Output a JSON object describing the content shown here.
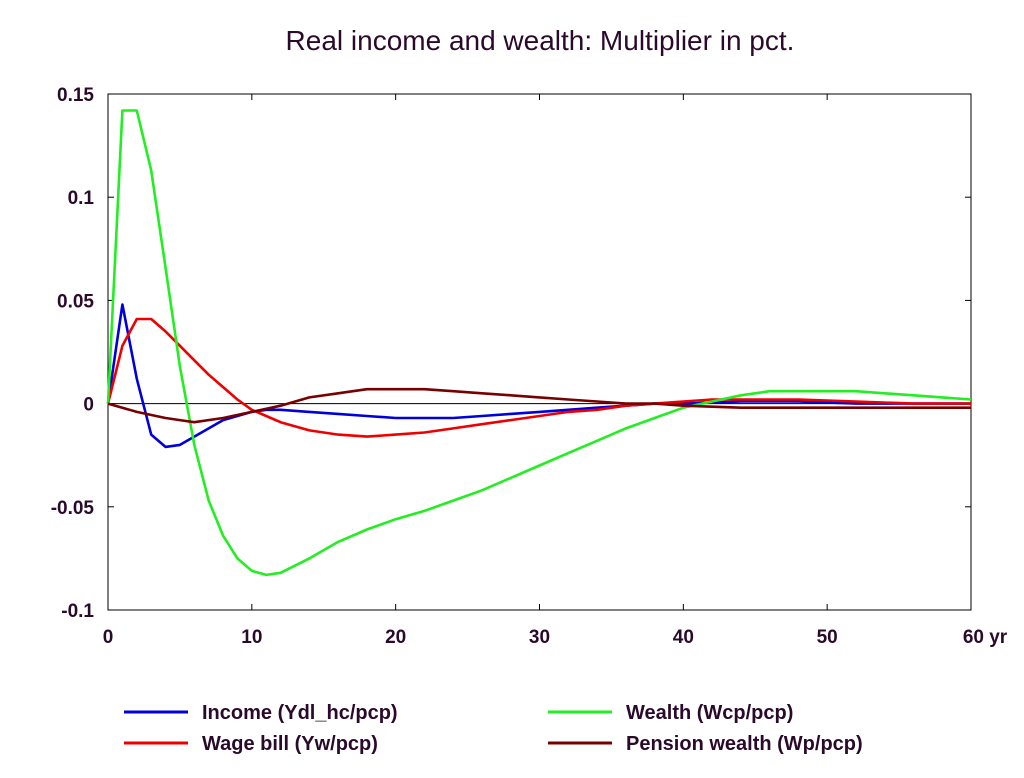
{
  "chart_data": {
    "type": "line",
    "title": "Real income and wealth: Multiplier in pct.",
    "xlabel": "",
    "ylabel": "",
    "x_unit_label": "yr",
    "xlim": [
      0,
      60
    ],
    "ylim": [
      -0.1,
      0.15
    ],
    "x_ticks": [
      "0",
      "10",
      "20",
      "30",
      "40",
      "50",
      "60"
    ],
    "y_ticks": [
      "0.15",
      "0.1",
      "0.05",
      "0",
      "-0.05",
      "-0.1"
    ],
    "grid": false,
    "zero_line": true,
    "legend_position": "bottom",
    "series": [
      {
        "name": "Income (Ydl_hc/pcp)",
        "color": "#0000dd",
        "points": [
          [
            0,
            0
          ],
          [
            1,
            0.048
          ],
          [
            2,
            0.012
          ],
          [
            3,
            -0.015
          ],
          [
            4,
            -0.021
          ],
          [
            5,
            -0.02
          ],
          [
            6,
            -0.016
          ],
          [
            7,
            -0.012
          ],
          [
            8,
            -0.008
          ],
          [
            9,
            -0.006
          ],
          [
            10,
            -0.004
          ],
          [
            11,
            -0.003
          ],
          [
            12,
            -0.003
          ],
          [
            14,
            -0.004
          ],
          [
            16,
            -0.005
          ],
          [
            18,
            -0.006
          ],
          [
            20,
            -0.007
          ],
          [
            22,
            -0.007
          ],
          [
            24,
            -0.007
          ],
          [
            26,
            -0.006
          ],
          [
            28,
            -0.005
          ],
          [
            30,
            -0.004
          ],
          [
            32,
            -0.003
          ],
          [
            34,
            -0.002
          ],
          [
            36,
            -0.001
          ],
          [
            38,
            0
          ],
          [
            40,
            0
          ],
          [
            44,
            0.001
          ],
          [
            48,
            0.001
          ],
          [
            52,
            0
          ],
          [
            56,
            0
          ],
          [
            60,
            0
          ]
        ]
      },
      {
        "name": "Wage bill (Yw/pcp)",
        "color": "#ee0000",
        "points": [
          [
            0,
            0
          ],
          [
            1,
            0.028
          ],
          [
            2,
            0.041
          ],
          [
            3,
            0.041
          ],
          [
            4,
            0.035
          ],
          [
            5,
            0.028
          ],
          [
            6,
            0.021
          ],
          [
            7,
            0.014
          ],
          [
            8,
            0.008
          ],
          [
            9,
            0.002
          ],
          [
            10,
            -0.003
          ],
          [
            11,
            -0.006
          ],
          [
            12,
            -0.009
          ],
          [
            14,
            -0.013
          ],
          [
            16,
            -0.015
          ],
          [
            18,
            -0.016
          ],
          [
            20,
            -0.015
          ],
          [
            22,
            -0.014
          ],
          [
            24,
            -0.012
          ],
          [
            26,
            -0.01
          ],
          [
            28,
            -0.008
          ],
          [
            30,
            -0.006
          ],
          [
            32,
            -0.004
          ],
          [
            34,
            -0.003
          ],
          [
            36,
            -0.001
          ],
          [
            38,
            0
          ],
          [
            40,
            0.001
          ],
          [
            42,
            0.002
          ],
          [
            44,
            0.002
          ],
          [
            46,
            0.002
          ],
          [
            48,
            0.002
          ],
          [
            52,
            0.001
          ],
          [
            56,
            0
          ],
          [
            60,
            0
          ]
        ]
      },
      {
        "name": "Wealth (Wcp/pcp)",
        "color": "#22ee22",
        "points": [
          [
            0,
            0
          ],
          [
            1,
            0.142
          ],
          [
            2,
            0.142
          ],
          [
            3,
            0.113
          ],
          [
            4,
            0.066
          ],
          [
            5,
            0.018
          ],
          [
            6,
            -0.02
          ],
          [
            7,
            -0.047
          ],
          [
            8,
            -0.064
          ],
          [
            9,
            -0.075
          ],
          [
            10,
            -0.081
          ],
          [
            11,
            -0.083
          ],
          [
            12,
            -0.082
          ],
          [
            14,
            -0.075
          ],
          [
            16,
            -0.067
          ],
          [
            18,
            -0.061
          ],
          [
            20,
            -0.056
          ],
          [
            22,
            -0.052
          ],
          [
            24,
            -0.047
          ],
          [
            26,
            -0.042
          ],
          [
            28,
            -0.036
          ],
          [
            30,
            -0.03
          ],
          [
            32,
            -0.024
          ],
          [
            34,
            -0.018
          ],
          [
            36,
            -0.012
          ],
          [
            38,
            -0.007
          ],
          [
            40,
            -0.002
          ],
          [
            42,
            0.001
          ],
          [
            44,
            0.004
          ],
          [
            46,
            0.006
          ],
          [
            48,
            0.006
          ],
          [
            50,
            0.006
          ],
          [
            52,
            0.006
          ],
          [
            54,
            0.005
          ],
          [
            56,
            0.004
          ],
          [
            58,
            0.003
          ],
          [
            60,
            0.002
          ]
        ]
      },
      {
        "name": "Pension wealth (Wp/pcp)",
        "color": "#770000",
        "points": [
          [
            0,
            0
          ],
          [
            2,
            -0.004
          ],
          [
            4,
            -0.007
          ],
          [
            5,
            -0.008
          ],
          [
            6,
            -0.009
          ],
          [
            8,
            -0.007
          ],
          [
            10,
            -0.004
          ],
          [
            12,
            -0.001
          ],
          [
            14,
            0.003
          ],
          [
            16,
            0.005
          ],
          [
            18,
            0.007
          ],
          [
            20,
            0.007
          ],
          [
            22,
            0.007
          ],
          [
            24,
            0.006
          ],
          [
            26,
            0.005
          ],
          [
            28,
            0.004
          ],
          [
            30,
            0.003
          ],
          [
            32,
            0.002
          ],
          [
            34,
            0.001
          ],
          [
            36,
            0
          ],
          [
            38,
            0
          ],
          [
            40,
            -0.001
          ],
          [
            44,
            -0.002
          ],
          [
            48,
            -0.002
          ],
          [
            52,
            -0.002
          ],
          [
            56,
            -0.002
          ],
          [
            60,
            -0.002
          ]
        ]
      }
    ]
  }
}
